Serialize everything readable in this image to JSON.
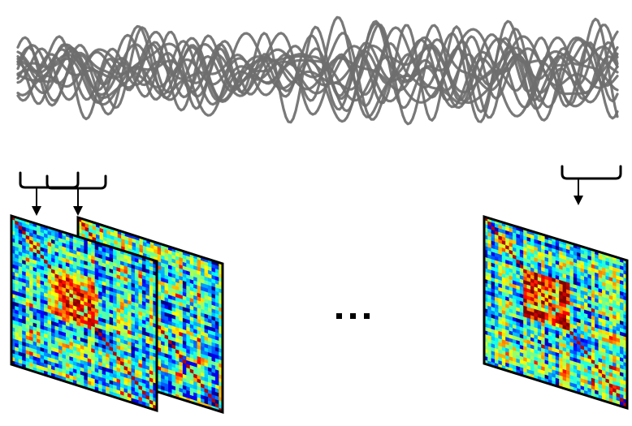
{
  "figure": {
    "signal_panel": {
      "trace_count": 14,
      "trace_color": "#6e6e6e"
    },
    "windows": [
      {
        "name": "window-1",
        "matrix_index": 0
      },
      {
        "name": "window-2",
        "matrix_index": 1
      },
      {
        "name": "window-last",
        "matrix_index": 2
      }
    ],
    "connectivity_matrices": [
      {
        "name": "matrix-1",
        "seed": 11,
        "hot_block": true
      },
      {
        "name": "matrix-2",
        "seed": 29,
        "hot_block": false
      },
      {
        "name": "matrix-last",
        "seed": 47,
        "hot_block": true
      }
    ],
    "colormap": "jet",
    "colors": {
      "outline": "#000000",
      "background": "#ffffff"
    },
    "ellipsis_glyph": "..."
  }
}
